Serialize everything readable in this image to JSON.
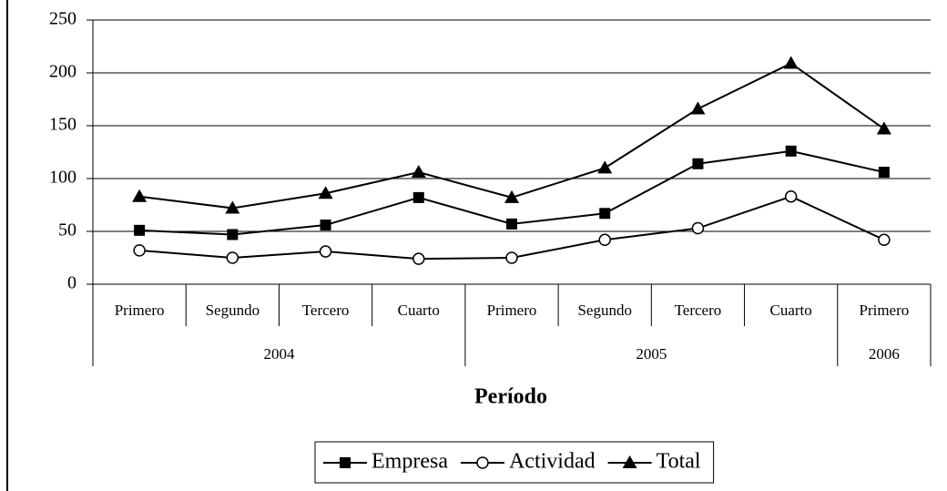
{
  "chart_data": {
    "type": "line",
    "categories": [
      "Primero",
      "Segundo",
      "Tercero",
      "Cuarto",
      "Primero",
      "Segundo",
      "Tercero",
      "Cuarto",
      "Primero"
    ],
    "category_groups": [
      "2004",
      null,
      null,
      null,
      "2005",
      null,
      null,
      null,
      "2006"
    ],
    "x_label": "Período",
    "series": [
      {
        "name": "Empresa",
        "color": "#000000",
        "marker": "square",
        "values": [
          51,
          47,
          56,
          82,
          57,
          67,
          114,
          126,
          106
        ]
      },
      {
        "name": "Actividad",
        "color": "#000000",
        "marker": "circle",
        "values": [
          32,
          25,
          31,
          24,
          25,
          42,
          53,
          83,
          42
        ]
      },
      {
        "name": "Total",
        "color": "#000000",
        "marker": "triangle",
        "values": [
          83,
          72,
          86,
          106,
          82,
          110,
          166,
          209,
          147
        ]
      }
    ],
    "ylim": [
      0,
      250
    ],
    "yticks": [
      0,
      50,
      100,
      150,
      200,
      250
    ],
    "grid": true,
    "legend": "bottom"
  }
}
